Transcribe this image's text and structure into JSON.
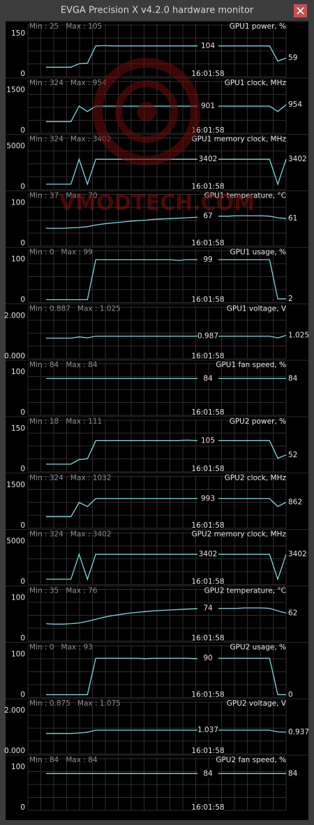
{
  "window": {
    "title": "EVGA Precision X v4.2.0 hardware monitor"
  },
  "watermark": "VMODTECH.COM",
  "cursor_time": "16:01:58",
  "line_color": "#7fd8df",
  "panels": [
    {
      "name": "GPU1 power, %",
      "min": "Min : 25",
      "max": "Max : 105",
      "ylim": [
        0,
        150
      ],
      "yticks": [
        0,
        150
      ],
      "cursor": 104,
      "current": 59,
      "trace": [
        25,
        25,
        25,
        25,
        38,
        40,
        104,
        105,
        104,
        104,
        104,
        104,
        104,
        104,
        104,
        104,
        104,
        104,
        104,
        104,
        104,
        104,
        104,
        104,
        104,
        104,
        104,
        104,
        48,
        59
      ]
    },
    {
      "name": "GPU1 clock, MHz",
      "min": "Min : 324",
      "max": "Max : 954",
      "ylim": [
        0,
        1500
      ],
      "yticks": [
        0,
        1500
      ],
      "cursor": 901,
      "current": 954,
      "trace": [
        324,
        324,
        324,
        324,
        900,
        700,
        901,
        901,
        901,
        901,
        901,
        901,
        901,
        901,
        901,
        901,
        901,
        901,
        901,
        901,
        901,
        901,
        901,
        901,
        901,
        901,
        901,
        901,
        700,
        954
      ]
    },
    {
      "name": "GPU1 memory clock, MHz",
      "min": "Min : 324",
      "max": "Max : 3402",
      "ylim": [
        0,
        5000
      ],
      "yticks": [
        0,
        5000
      ],
      "cursor": 3402,
      "current": 3402,
      "trace": [
        324,
        324,
        324,
        324,
        3402,
        324,
        3402,
        3402,
        3402,
        3402,
        3402,
        3402,
        3402,
        3402,
        3402,
        3402,
        3402,
        3402,
        3402,
        3402,
        3402,
        3402,
        3402,
        3402,
        3402,
        3402,
        3402,
        3402,
        324,
        3402
      ]
    },
    {
      "name": "GPU1 temperature, °C",
      "min": "Min : 37",
      "max": "Max : 70",
      "ylim": [
        0,
        100
      ],
      "yticks": [
        0,
        100
      ],
      "cursor": 67,
      "current": 61,
      "trace": [
        37,
        37,
        37,
        38,
        39,
        41,
        45,
        48,
        50,
        52,
        54,
        56,
        57,
        59,
        60,
        61,
        62,
        63,
        64,
        65,
        66,
        67,
        67,
        68,
        68,
        68,
        68,
        67,
        63,
        61
      ]
    },
    {
      "name": "GPU1 usage, %",
      "min": "Min : 0",
      "max": "Max : 99",
      "ylim": [
        0,
        100
      ],
      "yticks": [
        0,
        100
      ],
      "cursor": 99,
      "current": 2,
      "trace": [
        0,
        0,
        0,
        0,
        0,
        0,
        99,
        99,
        99,
        99,
        99,
        99,
        99,
        99,
        99,
        99,
        97,
        99,
        99,
        99,
        99,
        99,
        99,
        99,
        99,
        99,
        99,
        99,
        2,
        2
      ]
    },
    {
      "name": "GPU1 voltage, V",
      "min": "Min : 0.887",
      "max": "Max : 1.025",
      "ylim": [
        0,
        2
      ],
      "yticks": [
        {
          "value": 0,
          "label": "0.000"
        },
        {
          "value": 2,
          "label": "2.000"
        }
      ],
      "cursor": 0.987,
      "current": 1.025,
      "trace": [
        0.887,
        0.887,
        0.887,
        0.887,
        0.95,
        0.9,
        0.987,
        0.987,
        0.987,
        0.987,
        0.987,
        0.987,
        0.987,
        0.987,
        0.987,
        0.987,
        0.987,
        0.987,
        0.987,
        0.987,
        0.987,
        0.987,
        0.987,
        0.987,
        0.987,
        0.987,
        0.987,
        0.987,
        0.9,
        1.025
      ]
    },
    {
      "name": "GPU1 fan speed, %",
      "min": "Min : 84",
      "max": "Max : 84",
      "ylim": [
        0,
        100
      ],
      "yticks": [
        0,
        100
      ],
      "cursor": 84,
      "current": 84,
      "trace": [
        84,
        84,
        84,
        84,
        84,
        84,
        84,
        84,
        84,
        84,
        84,
        84,
        84,
        84,
        84,
        84,
        84,
        84,
        84,
        84,
        84,
        84,
        84,
        84,
        84,
        84,
        84,
        84,
        84,
        84
      ]
    },
    {
      "name": "GPU2 power, %",
      "min": "Min : 18",
      "max": "Max : 111",
      "ylim": [
        0,
        150
      ],
      "yticks": [
        0,
        150
      ],
      "cursor": 105,
      "current": 52,
      "trace": [
        18,
        18,
        18,
        18,
        35,
        38,
        105,
        105,
        105,
        105,
        105,
        105,
        105,
        105,
        105,
        105,
        105,
        107,
        105,
        105,
        105,
        105,
        105,
        105,
        105,
        105,
        105,
        105,
        40,
        52
      ]
    },
    {
      "name": "GPU2 clock, MHz",
      "min": "Min : 324",
      "max": "Max : 1032",
      "ylim": [
        0,
        1500
      ],
      "yticks": [
        0,
        1500
      ],
      "cursor": 993,
      "current": 862,
      "trace": [
        324,
        324,
        324,
        324,
        850,
        700,
        993,
        993,
        993,
        993,
        993,
        993,
        993,
        993,
        993,
        993,
        993,
        993,
        993,
        993,
        993,
        993,
        993,
        993,
        993,
        993,
        993,
        993,
        700,
        862
      ]
    },
    {
      "name": "GPU2 memory clock, MHz",
      "min": "Min : 324",
      "max": "Max : 3402",
      "ylim": [
        0,
        5000
      ],
      "yticks": [
        0,
        5000
      ],
      "cursor": 3402,
      "current": 3402,
      "trace": [
        324,
        324,
        324,
        324,
        3402,
        324,
        3402,
        3402,
        3402,
        3402,
        3402,
        3402,
        3402,
        3402,
        3402,
        3402,
        3402,
        3402,
        3402,
        3402,
        3402,
        3402,
        3402,
        3402,
        3402,
        3402,
        3402,
        3402,
        324,
        3402
      ]
    },
    {
      "name": "GPU2 temperature, °C",
      "min": "Min : 35",
      "max": "Max : 76",
      "ylim": [
        0,
        100
      ],
      "yticks": [
        0,
        100
      ],
      "cursor": 74,
      "current": 62,
      "trace": [
        36,
        35,
        35,
        36,
        38,
        42,
        47,
        52,
        56,
        59,
        62,
        64,
        66,
        68,
        69,
        70,
        71,
        72,
        73,
        74,
        74,
        74,
        74,
        74,
        75,
        75,
        75,
        74,
        68,
        62
      ]
    },
    {
      "name": "GPU2 usage, %",
      "min": "Min : 0",
      "max": "Max : 93",
      "ylim": [
        0,
        100
      ],
      "yticks": [
        0,
        100
      ],
      "cursor": 90,
      "current": 0,
      "trace": [
        0,
        0,
        0,
        0,
        0,
        0,
        90,
        90,
        90,
        90,
        90,
        90,
        89,
        90,
        90,
        90,
        90,
        90,
        89,
        90,
        90,
        90,
        90,
        90,
        90,
        90,
        90,
        90,
        0,
        0
      ]
    },
    {
      "name": "GPU2 voltage, V",
      "min": "Min : 0.875",
      "max": "Max : 1.075",
      "ylim": [
        0,
        2
      ],
      "yticks": [
        {
          "value": 0,
          "label": "0.000"
        },
        {
          "value": 2,
          "label": "2.000"
        }
      ],
      "cursor": 1.037,
      "current": 0.937,
      "trace": [
        0.875,
        0.875,
        0.875,
        0.875,
        0.9,
        0.93,
        1.037,
        1.037,
        1.037,
        1.037,
        1.037,
        1.037,
        1.037,
        1.037,
        1.037,
        1.037,
        1.037,
        1.037,
        1.037,
        1.037,
        1.037,
        1.037,
        1.037,
        1.037,
        1.037,
        1.037,
        1.037,
        1.037,
        0.95,
        0.937
      ]
    },
    {
      "name": "GPU2 fan speed, %",
      "min": "Min : 84",
      "max": "Max : 84",
      "ylim": [
        0,
        100
      ],
      "yticks": [
        0,
        100
      ],
      "cursor": 84,
      "current": 84,
      "trace": [
        84,
        84,
        84,
        84,
        84,
        84,
        84,
        84,
        84,
        84,
        84,
        84,
        84,
        84,
        84,
        84,
        84,
        84,
        84,
        84,
        84,
        84,
        84,
        84,
        84,
        84,
        84,
        84,
        84,
        84
      ]
    }
  ]
}
